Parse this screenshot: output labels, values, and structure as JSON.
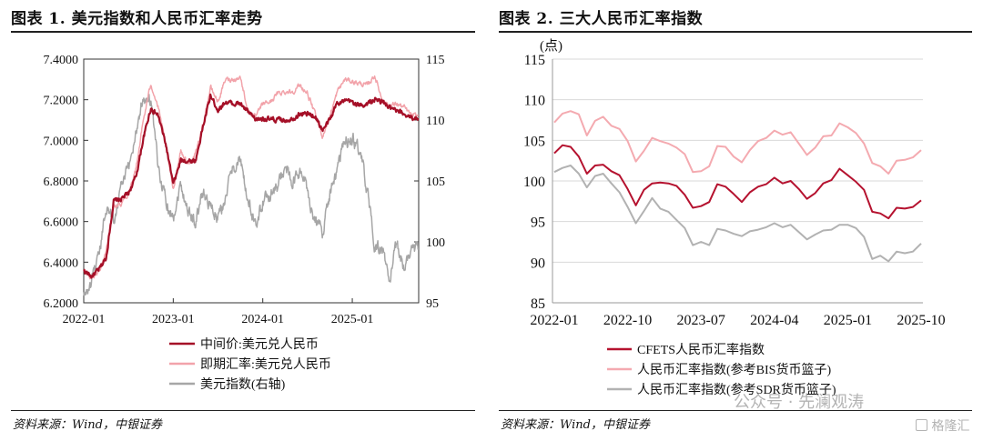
{
  "source_text": "资料来源：Wind，中银证券",
  "watermark": {
    "text": "公众号 · 先澜观涛",
    "brand": "格隆汇"
  },
  "chart_data": [
    {
      "type": "line",
      "title": "图表 1. 美元指数和人民币汇率走势",
      "x_ticks": [
        "2022-01",
        "2023-01",
        "2024-01",
        "2025-01"
      ],
      "x_range": [
        "2022-01",
        "2025-09"
      ],
      "y_left": {
        "ticks": [
          "6.2000",
          "6.4000",
          "6.6000",
          "6.8000",
          "7.0000",
          "7.2000",
          "7.4000"
        ],
        "range": [
          6.2,
          7.4
        ]
      },
      "y_right": {
        "label": "",
        "ticks": [
          "95",
          "100",
          "105",
          "110",
          "115"
        ],
        "range": [
          95,
          115
        ]
      },
      "grid": false,
      "legend_position": "bottom",
      "series": [
        {
          "name": "中间价:美元兑人民币",
          "axis": "left",
          "color": "#a50f27",
          "points": [
            [
              "2022-01",
              6.36
            ],
            [
              "2022-02",
              6.33
            ],
            [
              "2022-03",
              6.36
            ],
            [
              "2022-04",
              6.42
            ],
            [
              "2022-05",
              6.7
            ],
            [
              "2022-06",
              6.71
            ],
            [
              "2022-07",
              6.74
            ],
            [
              "2022-08",
              6.82
            ],
            [
              "2022-09",
              7.01
            ],
            [
              "2022-10",
              7.16
            ],
            [
              "2022-11",
              7.12
            ],
            [
              "2022-12",
              6.98
            ],
            [
              "2023-01",
              6.78
            ],
            [
              "2023-02",
              6.9
            ],
            [
              "2023-03",
              6.9
            ],
            [
              "2023-04",
              6.9
            ],
            [
              "2023-05",
              7.07
            ],
            [
              "2023-06",
              7.22
            ],
            [
              "2023-07",
              7.15
            ],
            [
              "2023-08",
              7.19
            ],
            [
              "2023-09",
              7.18
            ],
            [
              "2023-10",
              7.18
            ],
            [
              "2023-11",
              7.14
            ],
            [
              "2023-12",
              7.1
            ],
            [
              "2024-01",
              7.11
            ],
            [
              "2024-02",
              7.1
            ],
            [
              "2024-03",
              7.1
            ],
            [
              "2024-04",
              7.1
            ],
            [
              "2024-05",
              7.11
            ],
            [
              "2024-06",
              7.13
            ],
            [
              "2024-07",
              7.13
            ],
            [
              "2024-08",
              7.12
            ],
            [
              "2024-09",
              7.05
            ],
            [
              "2024-10",
              7.1
            ],
            [
              "2024-11",
              7.19
            ],
            [
              "2024-12",
              7.19
            ],
            [
              "2025-01",
              7.19
            ],
            [
              "2025-02",
              7.17
            ],
            [
              "2025-03",
              7.18
            ],
            [
              "2025-04",
              7.2
            ],
            [
              "2025-05",
              7.19
            ],
            [
              "2025-06",
              7.16
            ],
            [
              "2025-07",
              7.14
            ],
            [
              "2025-08",
              7.13
            ],
            [
              "2025-09",
              7.11
            ]
          ]
        },
        {
          "name": "即期汇率:美元兑人民币",
          "axis": "left",
          "color": "#f2a3aa",
          "points": [
            [
              "2022-01",
              6.36
            ],
            [
              "2022-02",
              6.32
            ],
            [
              "2022-03",
              6.35
            ],
            [
              "2022-04",
              6.45
            ],
            [
              "2022-05",
              6.68
            ],
            [
              "2022-06",
              6.69
            ],
            [
              "2022-07",
              6.74
            ],
            [
              "2022-08",
              6.86
            ],
            [
              "2022-09",
              7.1
            ],
            [
              "2022-10",
              7.28
            ],
            [
              "2022-11",
              7.16
            ],
            [
              "2022-12",
              6.97
            ],
            [
              "2023-01",
              6.76
            ],
            [
              "2023-02",
              6.95
            ],
            [
              "2023-03",
              6.88
            ],
            [
              "2023-04",
              6.93
            ],
            [
              "2023-05",
              7.08
            ],
            [
              "2023-06",
              7.26
            ],
            [
              "2023-07",
              7.19
            ],
            [
              "2023-08",
              7.3
            ],
            [
              "2023-09",
              7.3
            ],
            [
              "2023-10",
              7.31
            ],
            [
              "2023-11",
              7.15
            ],
            [
              "2023-12",
              7.11
            ],
            [
              "2024-01",
              7.18
            ],
            [
              "2024-02",
              7.19
            ],
            [
              "2024-03",
              7.23
            ],
            [
              "2024-04",
              7.24
            ],
            [
              "2024-05",
              7.24
            ],
            [
              "2024-06",
              7.27
            ],
            [
              "2024-07",
              7.23
            ],
            [
              "2024-08",
              7.13
            ],
            [
              "2024-09",
              7.02
            ],
            [
              "2024-10",
              7.12
            ],
            [
              "2024-11",
              7.24
            ],
            [
              "2024-12",
              7.3
            ],
            [
              "2025-01",
              7.29
            ],
            [
              "2025-02",
              7.28
            ],
            [
              "2025-03",
              7.27
            ],
            [
              "2025-04",
              7.32
            ],
            [
              "2025-05",
              7.2
            ],
            [
              "2025-06",
              7.17
            ],
            [
              "2025-07",
              7.18
            ],
            [
              "2025-08",
              7.16
            ],
            [
              "2025-09",
              7.12
            ]
          ]
        },
        {
          "name": "美元指数(右轴)",
          "axis": "right",
          "color": "#a6a6a6",
          "points": [
            [
              "2022-01",
              95.5
            ],
            [
              "2022-02",
              96.5
            ],
            [
              "2022-03",
              98.5
            ],
            [
              "2022-04",
              103.0
            ],
            [
              "2022-05",
              101.8
            ],
            [
              "2022-06",
              104.6
            ],
            [
              "2022-07",
              106.0
            ],
            [
              "2022-08",
              109.0
            ],
            [
              "2022-09",
              112.0
            ],
            [
              "2022-10",
              111.5
            ],
            [
              "2022-11",
              106.0
            ],
            [
              "2022-12",
              103.5
            ],
            [
              "2023-01",
              102.0
            ],
            [
              "2023-02",
              104.8
            ],
            [
              "2023-03",
              102.5
            ],
            [
              "2023-04",
              101.7
            ],
            [
              "2023-05",
              104.2
            ],
            [
              "2023-06",
              102.9
            ],
            [
              "2023-07",
              101.9
            ],
            [
              "2023-08",
              103.6
            ],
            [
              "2023-09",
              106.2
            ],
            [
              "2023-10",
              106.6
            ],
            [
              "2023-11",
              103.4
            ],
            [
              "2023-12",
              101.3
            ],
            [
              "2024-01",
              103.3
            ],
            [
              "2024-02",
              104.0
            ],
            [
              "2024-03",
              104.5
            ],
            [
              "2024-04",
              106.2
            ],
            [
              "2024-05",
              104.6
            ],
            [
              "2024-06",
              105.9
            ],
            [
              "2024-07",
              104.1
            ],
            [
              "2024-08",
              101.7
            ],
            [
              "2024-09",
              100.8
            ],
            [
              "2024-10",
              104.1
            ],
            [
              "2024-11",
              105.7
            ],
            [
              "2024-12",
              108.4
            ],
            [
              "2025-01",
              108.4
            ],
            [
              "2025-02",
              107.6
            ],
            [
              "2025-03",
              104.2
            ],
            [
              "2025-04",
              99.5
            ],
            [
              "2025-05",
              99.4
            ],
            [
              "2025-06",
              96.9
            ],
            [
              "2025-07",
              99.9
            ],
            [
              "2025-08",
              97.8
            ],
            [
              "2025-09",
              99.5
            ]
          ]
        }
      ]
    },
    {
      "type": "line",
      "title": "图表 2. 三大人民币汇率指数",
      "ylabel": "(点)",
      "x_ticks": [
        "2022-01",
        "2022-10",
        "2023-07",
        "2024-04",
        "2025-01",
        "2025-10"
      ],
      "x_range": [
        "2022-01",
        "2025-10"
      ],
      "y_axis": {
        "ticks": [
          "85",
          "90",
          "95",
          "100",
          "105",
          "110",
          "115"
        ],
        "range": [
          85,
          115
        ]
      },
      "grid": true,
      "legend_position": "bottom",
      "series": [
        {
          "name": "CFETS人民币汇率指数",
          "color": "#b5122f",
          "values": [
            103.4,
            104.4,
            104.2,
            103.0,
            100.9,
            101.9,
            102.0,
            101.2,
            100.7,
            99.0,
            97.0,
            98.9,
            99.7,
            99.8,
            99.7,
            99.4,
            98.3,
            96.7,
            96.9,
            97.4,
            99.6,
            99.3,
            98.4,
            97.4,
            98.6,
            99.3,
            99.6,
            100.4,
            99.7,
            100.0,
            99.0,
            97.8,
            98.5,
            99.7,
            100.1,
            101.5,
            100.7,
            99.9,
            98.9,
            96.2,
            96.0,
            95.4,
            96.7,
            96.6,
            96.8,
            97.6
          ]
        },
        {
          "name": "人民币汇率指数(参考BIS货币篮子)",
          "color": "#f4aab0",
          "values": [
            107.2,
            108.3,
            108.6,
            108.2,
            105.6,
            107.4,
            107.9,
            106.8,
            106.4,
            104.9,
            102.4,
            103.7,
            105.3,
            104.9,
            104.6,
            104.1,
            103.3,
            101.1,
            101.2,
            101.8,
            104.3,
            104.2,
            103.0,
            102.3,
            103.8,
            104.9,
            105.3,
            106.2,
            105.7,
            106.0,
            104.6,
            103.2,
            104.1,
            105.5,
            105.6,
            107.1,
            106.6,
            105.9,
            104.6,
            102.2,
            101.8,
            100.9,
            102.5,
            102.6,
            102.9,
            103.8
          ]
        },
        {
          "name": "人民币汇率指数(参考SDR货币篮子)",
          "color": "#b2b2b2",
          "values": [
            101.1,
            101.6,
            101.9,
            100.9,
            99.2,
            100.6,
            100.9,
            99.7,
            98.6,
            96.8,
            94.8,
            96.3,
            97.9,
            96.6,
            96.2,
            95.2,
            94.2,
            92.1,
            92.5,
            92.1,
            94.1,
            93.9,
            93.5,
            93.2,
            93.8,
            94.0,
            94.3,
            94.8,
            94.3,
            94.6,
            93.7,
            92.8,
            93.4,
            93.9,
            94.0,
            94.6,
            94.6,
            94.2,
            93.1,
            90.4,
            90.8,
            90.1,
            91.3,
            91.1,
            91.3,
            92.3
          ]
        }
      ]
    }
  ]
}
